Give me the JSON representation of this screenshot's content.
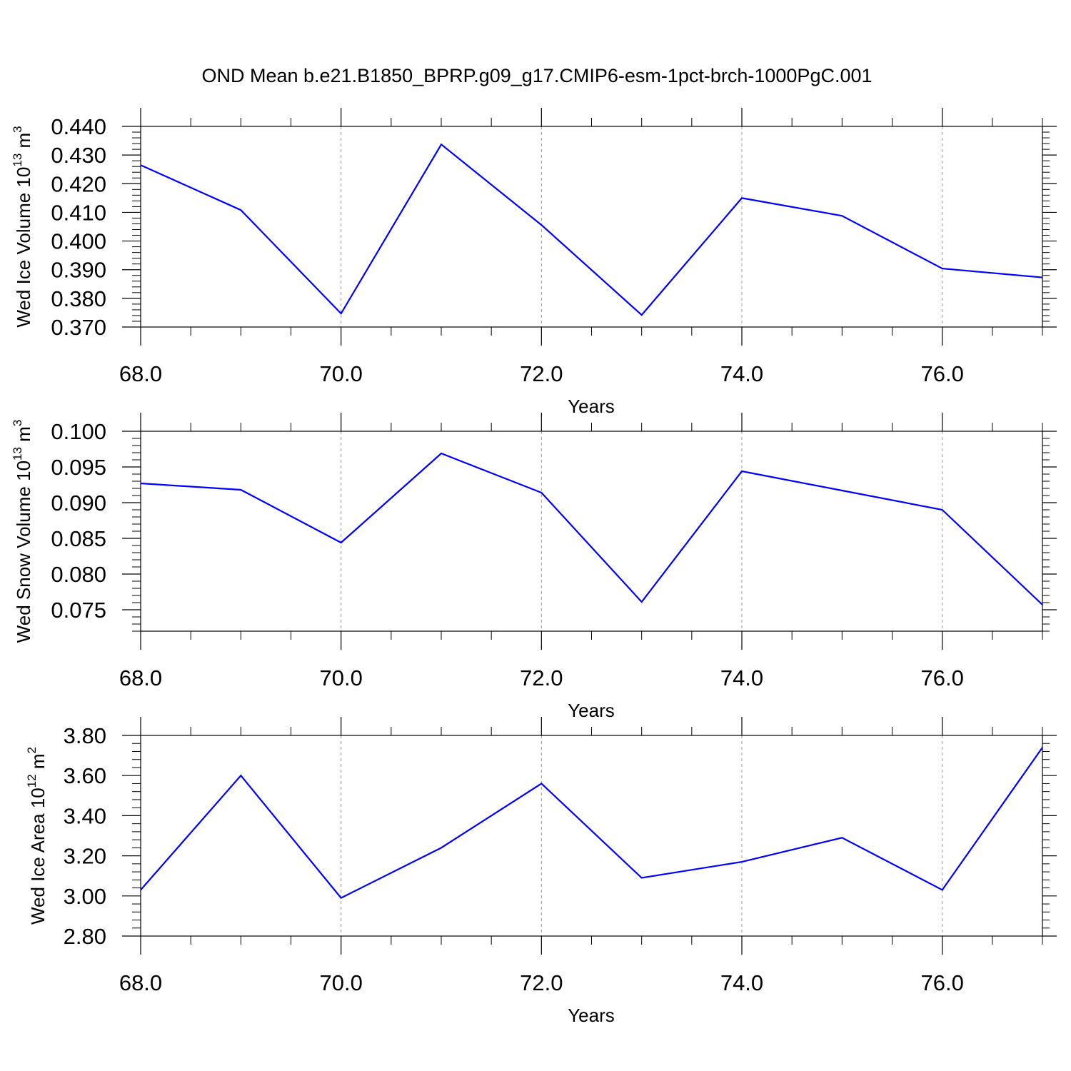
{
  "title": "OND Mean b.e21.B1850_BPRP.g09_g17.CMIP6-esm-1pct-brch-1000PgC.001",
  "chart_data": [
    {
      "type": "line",
      "ylabel": "Wed Ice Volume 10",
      "ylabel_exp": "13",
      "ylabel_unit": " m",
      "ylabel_unit_exp": "3",
      "xlabel": "Years",
      "ylim": [
        0.37,
        0.44
      ],
      "yticks": [
        "0.440",
        "0.430",
        "0.420",
        "0.410",
        "0.400",
        "0.390",
        "0.380",
        "0.370"
      ],
      "xlim": [
        68,
        77
      ],
      "xticks": [
        "68.0",
        "70.0",
        "72.0",
        "74.0",
        "76.0"
      ],
      "line_color": "#0000ff",
      "x": [
        68,
        69,
        70,
        71,
        72,
        73,
        74,
        75,
        76,
        77
      ],
      "y": [
        0.4265,
        0.4108,
        0.3747,
        0.4337,
        0.4056,
        0.3742,
        0.415,
        0.4088,
        0.3904,
        0.3873
      ]
    },
    {
      "type": "line",
      "ylabel": "Wed Snow Volume 10",
      "ylabel_exp": "13",
      "ylabel_unit": " m",
      "ylabel_unit_exp": "3",
      "xlabel": "Years",
      "ylim": [
        0.072,
        0.1
      ],
      "yticks": [
        "0.100",
        "0.095",
        "0.090",
        "0.085",
        "0.080",
        "0.075"
      ],
      "xlim": [
        68,
        77
      ],
      "xticks": [
        "68.0",
        "70.0",
        "72.0",
        "74.0",
        "76.0"
      ],
      "line_color": "#0000ff",
      "x": [
        68,
        69,
        70,
        71,
        72,
        73,
        74,
        75,
        76,
        77
      ],
      "y": [
        0.0927,
        0.0918,
        0.0844,
        0.0969,
        0.0914,
        0.0761,
        0.0944,
        0.0917,
        0.089,
        0.0757
      ]
    },
    {
      "type": "line",
      "ylabel": "Wed Ice Area 10",
      "ylabel_exp": "12",
      "ylabel_unit": " m",
      "ylabel_unit_exp": "2",
      "xlabel": "Years",
      "ylim": [
        2.8,
        3.8
      ],
      "yticks": [
        "3.80",
        "3.60",
        "3.40",
        "3.20",
        "3.00",
        "2.80"
      ],
      "xlim": [
        68,
        77
      ],
      "xticks": [
        "68.0",
        "70.0",
        "72.0",
        "74.0",
        "76.0"
      ],
      "line_color": "#0000ff",
      "x": [
        68,
        69,
        70,
        71,
        72,
        73,
        74,
        75,
        76,
        77
      ],
      "y": [
        3.03,
        3.6,
        2.99,
        3.24,
        3.56,
        3.09,
        3.17,
        3.29,
        3.03,
        3.74
      ]
    }
  ]
}
